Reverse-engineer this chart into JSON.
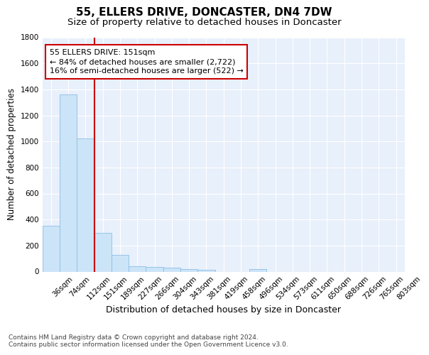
{
  "title": "55, ELLERS DRIVE, DONCASTER, DN4 7DW",
  "subtitle": "Size of property relative to detached houses in Doncaster",
  "xlabel": "Distribution of detached houses by size in Doncaster",
  "ylabel": "Number of detached properties",
  "bar_color": "#cce4f7",
  "bar_edge_color": "#8bbfe8",
  "vline_color": "#cc0000",
  "categories": [
    "36sqm",
    "74sqm",
    "112sqm",
    "151sqm",
    "189sqm",
    "227sqm",
    "266sqm",
    "304sqm",
    "343sqm",
    "381sqm",
    "419sqm",
    "458sqm",
    "496sqm",
    "534sqm",
    "573sqm",
    "611sqm",
    "650sqm",
    "688sqm",
    "726sqm",
    "765sqm",
    "803sqm"
  ],
  "values": [
    350,
    1360,
    1025,
    295,
    130,
    42,
    38,
    30,
    20,
    15,
    0,
    0,
    20,
    0,
    0,
    0,
    0,
    0,
    0,
    0,
    0
  ],
  "vline_index": 3,
  "annotation_line1": "55 ELLERS DRIVE: 151sqm",
  "annotation_line2": "← 84% of detached houses are smaller (2,722)",
  "annotation_line3": "16% of semi-detached houses are larger (522) →",
  "annotation_box_color": "#ffffff",
  "annotation_box_edge": "#cc0000",
  "ylim": [
    0,
    1800
  ],
  "yticks": [
    0,
    200,
    400,
    600,
    800,
    1000,
    1200,
    1400,
    1600,
    1800
  ],
  "bg_color": "#e8f0fb",
  "grid_color": "#ffffff",
  "footer_text": "Contains HM Land Registry data © Crown copyright and database right 2024.\nContains public sector information licensed under the Open Government Licence v3.0.",
  "title_fontsize": 11,
  "subtitle_fontsize": 9.5,
  "xlabel_fontsize": 9,
  "ylabel_fontsize": 8.5,
  "tick_fontsize": 7.5,
  "annotation_fontsize": 8,
  "footer_fontsize": 6.5
}
